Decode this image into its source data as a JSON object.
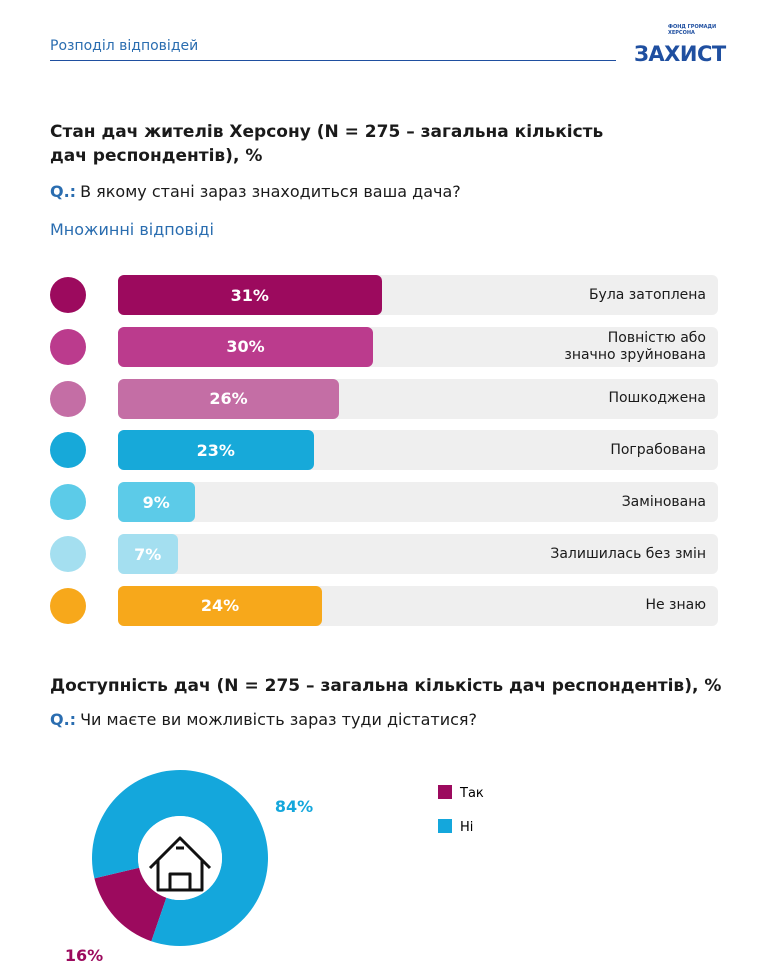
{
  "header": {
    "section": "Розподіл відповідей",
    "logo": "ЗАХИСТ",
    "logo_subtitle": "ФОНД ГРОМАДИ ХЕРСОНА"
  },
  "chart_data": [
    {
      "type": "bar",
      "orientation": "horizontal",
      "title": "Стан дач жителів Херсону (N = 275 – загальна кількість дач респондентів), %",
      "question_prefix": "Q.:",
      "question": "В якому стані зараз знаходиться ваша дача?",
      "subtitle": "Множинні відповіді",
      "categories": [
        "Була затоплена",
        "Повністю або значно зруйнована",
        "Пошкоджена",
        "Пограбована",
        "Замінована",
        "Залишилась без змін",
        "Не знаю"
      ],
      "values": [
        31,
        30,
        26,
        23,
        9,
        7,
        24
      ],
      "value_labels": [
        "31%",
        "30%",
        "26%",
        "23%",
        "9%",
        "7%",
        "24%"
      ],
      "colors": [
        "#9c0a5e",
        "#bb3b8d",
        "#c46ea5",
        "#17a9d9",
        "#5ccbe8",
        "#a4dff0",
        "#f7a81b"
      ]
    },
    {
      "type": "donut",
      "title": "Доступність дач (N = 275 – загальна кількість дач респондентів), %",
      "question_prefix": "Q.:",
      "question": "Чи маєте ви можливість зараз туди дістатися?",
      "categories": [
        "Так",
        "Ні"
      ],
      "values": [
        16,
        84
      ],
      "value_labels": [
        "16%",
        "84%"
      ],
      "colors": [
        "#9c0a5e",
        "#14a7dc"
      ]
    }
  ]
}
